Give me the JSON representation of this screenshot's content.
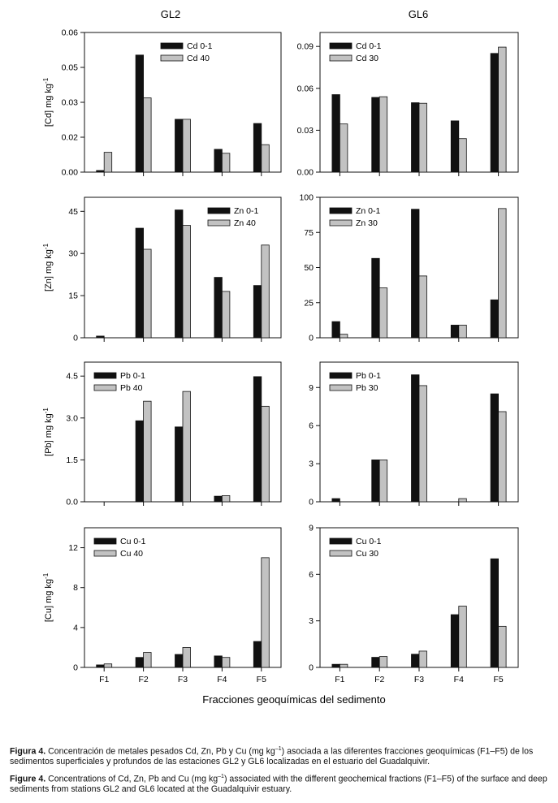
{
  "figure": {
    "column_titles": [
      "GL2",
      "GL6"
    ],
    "x_axis_title": "Fracciones geoquímicas del sedimento",
    "series_colors": {
      "surface": "#111111",
      "deep": "#c2c2c2"
    }
  },
  "chart_data": [
    {
      "type": "bar",
      "panel": "Cd-GL2",
      "ylabel_element": "Cd",
      "ylabel_unit": "mg kg",
      "ylabel_exp": "-1",
      "categories": [
        "F1",
        "F2",
        "F3",
        "F4",
        "F5"
      ],
      "ylim": [
        0,
        0.06
      ],
      "yticks": [
        0,
        0.015,
        0.03,
        0.045,
        0.06
      ],
      "yticklabels": [
        "0.00",
        "0.02",
        "0.03",
        "0.05",
        "0.06"
      ],
      "legend_position": "top-center",
      "series": [
        {
          "name": "Cd 0-1",
          "values": [
            0.0007,
            0.0503,
            0.0227,
            0.0098,
            0.0209
          ]
        },
        {
          "name": "Cd 40",
          "values": [
            0.0085,
            0.0319,
            0.0227,
            0.0081,
            0.0118
          ]
        }
      ]
    },
    {
      "type": "bar",
      "panel": "Cd-GL6",
      "ylabel_element": "",
      "ylabel_unit": "",
      "ylabel_exp": "",
      "categories": [
        "F1",
        "F2",
        "F3",
        "F4",
        "F5"
      ],
      "ylim": [
        0,
        0.1
      ],
      "yticks": [
        0,
        0.03,
        0.06,
        0.09
      ],
      "yticklabels": [
        "0.00",
        "0.03",
        "0.06",
        "0.09"
      ],
      "legend_position": "top-left",
      "series": [
        {
          "name": "Cd 0-1",
          "values": [
            0.0555,
            0.0535,
            0.0497,
            0.0367,
            0.085
          ]
        },
        {
          "name": "Cd 30",
          "values": [
            0.0345,
            0.054,
            0.0493,
            0.024,
            0.0895
          ]
        }
      ]
    },
    {
      "type": "bar",
      "panel": "Zn-GL2",
      "ylabel_element": "Zn",
      "ylabel_unit": "mg kg",
      "ylabel_exp": "-1",
      "categories": [
        "F1",
        "F2",
        "F3",
        "F4",
        "F5"
      ],
      "ylim": [
        0,
        50
      ],
      "yticks": [
        0,
        15,
        30,
        45
      ],
      "yticklabels": [
        "0",
        "15",
        "30",
        "45"
      ],
      "legend_position": "top-right",
      "series": [
        {
          "name": "Zn 0-1",
          "values": [
            0.6,
            39,
            45.5,
            21.5,
            18.6
          ]
        },
        {
          "name": "Zn 40",
          "values": [
            0,
            31.5,
            40,
            16.5,
            33
          ]
        }
      ]
    },
    {
      "type": "bar",
      "panel": "Zn-GL6",
      "ylabel_element": "",
      "ylabel_unit": "",
      "ylabel_exp": "",
      "categories": [
        "F1",
        "F2",
        "F3",
        "F4",
        "F5"
      ],
      "ylim": [
        0,
        100
      ],
      "yticks": [
        0,
        25,
        50,
        75,
        100
      ],
      "yticklabels": [
        "0",
        "25",
        "50",
        "75",
        "100"
      ],
      "legend_position": "top-left",
      "series": [
        {
          "name": "Zn 0-1",
          "values": [
            11.5,
            56.5,
            91.5,
            9,
            27
          ]
        },
        {
          "name": "Zn 30",
          "values": [
            2.5,
            35.5,
            44,
            9,
            92
          ]
        }
      ]
    },
    {
      "type": "bar",
      "panel": "Pb-GL2",
      "ylabel_element": "Pb",
      "ylabel_unit": "mg kg",
      "ylabel_exp": "-1",
      "categories": [
        "F1",
        "F2",
        "F3",
        "F4",
        "F5"
      ],
      "ylim": [
        0,
        5
      ],
      "yticks": [
        0,
        1.5,
        3,
        4.5
      ],
      "yticklabels": [
        "0.0",
        "1.5",
        "3.0",
        "4.5"
      ],
      "legend_position": "top-left",
      "series": [
        {
          "name": "Pb 0-1",
          "values": [
            0,
            2.9,
            2.68,
            0.2,
            4.48
          ]
        },
        {
          "name": "Pb 40",
          "values": [
            0,
            3.6,
            3.95,
            0.22,
            3.42
          ]
        }
      ]
    },
    {
      "type": "bar",
      "panel": "Pb-GL6",
      "ylabel_element": "",
      "ylabel_unit": "",
      "ylabel_exp": "",
      "categories": [
        "F1",
        "F2",
        "F3",
        "F4",
        "F5"
      ],
      "ylim": [
        0,
        11
      ],
      "yticks": [
        0,
        3,
        6,
        9
      ],
      "yticklabels": [
        "0",
        "3",
        "6",
        "9"
      ],
      "legend_position": "top-left",
      "series": [
        {
          "name": "Pb 0-1",
          "values": [
            0.25,
            3.3,
            10,
            0,
            8.5
          ]
        },
        {
          "name": "Pb 30",
          "values": [
            0,
            3.3,
            9.15,
            0.25,
            7.1
          ]
        }
      ]
    },
    {
      "type": "bar",
      "panel": "Cu-GL2",
      "ylabel_element": "Cu",
      "ylabel_unit": "mg kg",
      "ylabel_exp": "-1",
      "categories": [
        "F1",
        "F2",
        "F3",
        "F4",
        "F5"
      ],
      "ylim": [
        0,
        14
      ],
      "yticks": [
        0,
        4,
        8,
        12
      ],
      "yticklabels": [
        "0",
        "4",
        "8",
        "12"
      ],
      "legend_position": "top-left",
      "series": [
        {
          "name": "Cu 0-1",
          "values": [
            0.25,
            1,
            1.3,
            1.15,
            2.6
          ]
        },
        {
          "name": "Cu 40",
          "values": [
            0.35,
            1.5,
            2,
            1,
            11
          ]
        }
      ]
    },
    {
      "type": "bar",
      "panel": "Cu-GL6",
      "ylabel_element": "",
      "ylabel_unit": "",
      "ylabel_exp": "",
      "categories": [
        "F1",
        "F2",
        "F3",
        "F4",
        "F5"
      ],
      "ylim": [
        0,
        9
      ],
      "yticks": [
        0,
        3,
        6,
        9
      ],
      "yticklabels": [
        "0",
        "3",
        "6",
        "9"
      ],
      "legend_position": "top-left",
      "series": [
        {
          "name": "Cu 0-1",
          "values": [
            0.2,
            0.65,
            0.85,
            3.4,
            7
          ]
        },
        {
          "name": "Cu 30",
          "values": [
            0.2,
            0.7,
            1.05,
            3.95,
            2.65
          ]
        }
      ]
    }
  ],
  "caption": {
    "es_label": "Figura 4.",
    "es_text_1": "Concentración de metales pesados Cd, Zn, Pb y Cu (mg kg",
    "es_sup": "–1",
    "es_text_2": ") asociada a las diferentes fracciones geoquímicas (F1–F5) de los sedimentos superficiales y profundos de las estaciones GL2 y GL6 localizadas en el estuario del Guadalquivir.",
    "en_label": "Figure 4.",
    "en_text_1": "Concentrations of Cd, Zn, Pb and Cu (mg kg",
    "en_sup": "–1",
    "en_text_2": ") associated with the different geochemical fractions (F1–F5) of the surface and deep sediments from stations GL2 and GL6 located at the Guadalquivir estuary."
  }
}
